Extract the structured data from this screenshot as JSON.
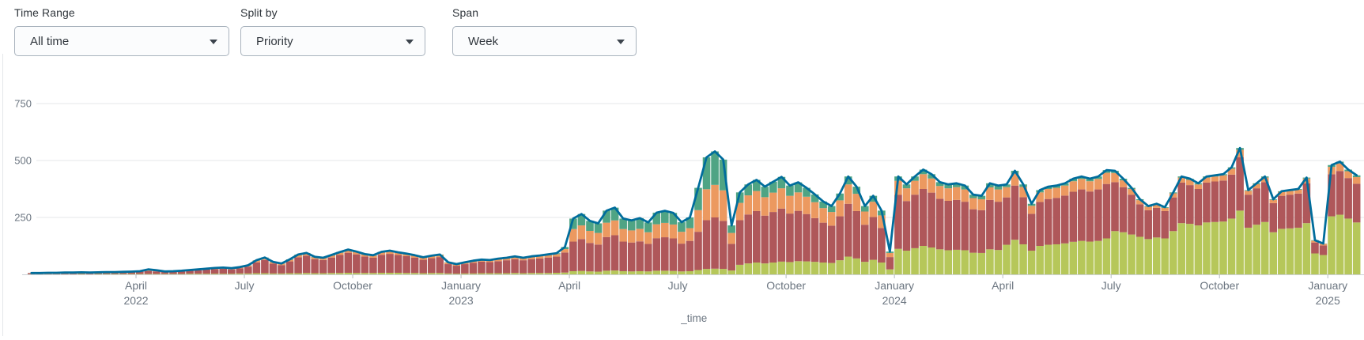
{
  "filters": [
    {
      "label": "Time Range",
      "value": "All time"
    },
    {
      "label": "Split by",
      "value": "Priority"
    },
    {
      "label": "Span",
      "value": "Week"
    }
  ],
  "chart_data": {
    "type": "bar",
    "subtype": "stacked-weekly-columns-with-total-line",
    "title": "",
    "xlabel": "_time",
    "ylabel": "",
    "ylim": [
      0,
      830
    ],
    "yticks": [
      250,
      500,
      750
    ],
    "grid": "horizontal",
    "legend_position": "none",
    "span": "week",
    "colors": {
      "lime": "#b6c75a",
      "red": "#af575a",
      "orange": "#ec9960",
      "teal": "#4fa484",
      "line": "#006d9c",
      "axis_text": "#6b7580",
      "gridline": "#e4e7ea",
      "baseline": "#ccd1d6",
      "tickmark": "#b6bcc2"
    },
    "stack_order_bottom_to_top": [
      "lime",
      "red",
      "orange",
      "teal"
    ],
    "line_series": "total-of-stack",
    "x_ticks": [
      {
        "week": 13,
        "lines": [
          "April",
          "2022"
        ]
      },
      {
        "week": 26,
        "lines": [
          "July"
        ]
      },
      {
        "week": 39,
        "lines": [
          "October"
        ]
      },
      {
        "week": 52,
        "lines": [
          "January",
          "2023"
        ]
      },
      {
        "week": 65,
        "lines": [
          "April"
        ]
      },
      {
        "week": 78,
        "lines": [
          "July"
        ]
      },
      {
        "week": 91,
        "lines": [
          "October"
        ]
      },
      {
        "week": 104,
        "lines": [
          "January",
          "2024"
        ]
      },
      {
        "week": 117,
        "lines": [
          "April"
        ]
      },
      {
        "week": 130,
        "lines": [
          "July"
        ]
      },
      {
        "week": 143,
        "lines": [
          "October"
        ]
      },
      {
        "week": 156,
        "lines": [
          "January",
          "2025"
        ]
      }
    ],
    "weeks_start": "2022-01",
    "weeks": [
      [
        1,
        5,
        0,
        0
      ],
      [
        1,
        5,
        0,
        0
      ],
      [
        1,
        5,
        1,
        0
      ],
      [
        1,
        6,
        0,
        0
      ],
      [
        1,
        6,
        1,
        0
      ],
      [
        1,
        6,
        1,
        0
      ],
      [
        2,
        6,
        1,
        0
      ],
      [
        1,
        6,
        1,
        0
      ],
      [
        2,
        6,
        1,
        0
      ],
      [
        2,
        7,
        1,
        0
      ],
      [
        2,
        7,
        1,
        0
      ],
      [
        2,
        8,
        1,
        0
      ],
      [
        2,
        9,
        1,
        0
      ],
      [
        2,
        10,
        2,
        0
      ],
      [
        2,
        12,
        8,
        0
      ],
      [
        2,
        11,
        5,
        0
      ],
      [
        2,
        9,
        2,
        0
      ],
      [
        2,
        10,
        2,
        0
      ],
      [
        2,
        11,
        3,
        0
      ],
      [
        3,
        13,
        3,
        0
      ],
      [
        3,
        15,
        4,
        0
      ],
      [
        3,
        18,
        4,
        0
      ],
      [
        3,
        20,
        4,
        1
      ],
      [
        3,
        22,
        4,
        1
      ],
      [
        3,
        19,
        4,
        1
      ],
      [
        4,
        23,
        4,
        1
      ],
      [
        4,
        30,
        5,
        1
      ],
      [
        5,
        48,
        8,
        1
      ],
      [
        5,
        58,
        9,
        2
      ],
      [
        4,
        43,
        7,
        1
      ],
      [
        4,
        37,
        6,
        1
      ],
      [
        5,
        52,
        7,
        2
      ],
      [
        5,
        70,
        10,
        2
      ],
      [
        6,
        76,
        10,
        2
      ],
      [
        5,
        62,
        8,
        2
      ],
      [
        5,
        58,
        8,
        2
      ],
      [
        6,
        68,
        9,
        2
      ],
      [
        6,
        79,
        10,
        3
      ],
      [
        7,
        88,
        11,
        3
      ],
      [
        6,
        82,
        10,
        2
      ],
      [
        6,
        72,
        9,
        2
      ],
      [
        6,
        67,
        9,
        2
      ],
      [
        7,
        79,
        10,
        3
      ],
      [
        7,
        83,
        11,
        3
      ],
      [
        7,
        78,
        10,
        2
      ],
      [
        6,
        74,
        9,
        2
      ],
      [
        6,
        67,
        9,
        2
      ],
      [
        5,
        59,
        9,
        2
      ],
      [
        6,
        65,
        9,
        2
      ],
      [
        6,
        70,
        9,
        2
      ],
      [
        4,
        41,
        7,
        1
      ],
      [
        3,
        35,
        6,
        1
      ],
      [
        4,
        41,
        7,
        1
      ],
      [
        4,
        47,
        8,
        1
      ],
      [
        5,
        51,
        8,
        1
      ],
      [
        5,
        49,
        8,
        1
      ],
      [
        5,
        53,
        9,
        2
      ],
      [
        5,
        57,
        9,
        2
      ],
      [
        6,
        61,
        10,
        2
      ],
      [
        5,
        57,
        9,
        2
      ],
      [
        6,
        61,
        10,
        2
      ],
      [
        6,
        64,
        10,
        3
      ],
      [
        6,
        68,
        11,
        3
      ],
      [
        7,
        71,
        11,
        4
      ],
      [
        8,
        88,
        15,
        9
      ],
      [
        14,
        130,
        55,
        46
      ],
      [
        15,
        140,
        60,
        50
      ],
      [
        13,
        125,
        53,
        44
      ],
      [
        12,
        119,
        51,
        42
      ],
      [
        16,
        148,
        63,
        53
      ],
      [
        17,
        155,
        65,
        56
      ],
      [
        14,
        130,
        55,
        46
      ],
      [
        13,
        127,
        53,
        44
      ],
      [
        14,
        131,
        55,
        47
      ],
      [
        13,
        121,
        51,
        43
      ],
      [
        16,
        143,
        61,
        51
      ],
      [
        16,
        147,
        63,
        53
      ],
      [
        15,
        143,
        61,
        51
      ],
      [
        13,
        122,
        52,
        42
      ],
      [
        14,
        133,
        56,
        47
      ],
      [
        19,
        168,
        95,
        98
      ],
      [
        24,
        214,
        136,
        140
      ],
      [
        25,
        225,
        143,
        147
      ],
      [
        24,
        211,
        134,
        135
      ],
      [
        17,
        117,
        48,
        33
      ],
      [
        42,
        196,
        76,
        46
      ],
      [
        48,
        215,
        84,
        48
      ],
      [
        52,
        226,
        88,
        49
      ],
      [
        48,
        210,
        81,
        46
      ],
      [
        52,
        222,
        85,
        48
      ],
      [
        56,
        233,
        89,
        50
      ],
      [
        54,
        213,
        78,
        45
      ],
      [
        58,
        221,
        81,
        44
      ],
      [
        57,
        208,
        76,
        39
      ],
      [
        55,
        192,
        70,
        34
      ],
      [
        52,
        175,
        64,
        29
      ],
      [
        50,
        164,
        60,
        26
      ],
      [
        62,
        193,
        70,
        30
      ],
      [
        78,
        232,
        85,
        35
      ],
      [
        70,
        208,
        76,
        31
      ],
      [
        55,
        163,
        58,
        24
      ],
      [
        64,
        188,
        67,
        26
      ],
      [
        52,
        152,
        55,
        21
      ],
      [
        22,
        54,
        18,
        6
      ],
      [
        112,
        237,
        62,
        19
      ],
      [
        104,
        218,
        56,
        17
      ],
      [
        115,
        235,
        61,
        19
      ],
      [
        125,
        250,
        65,
        20
      ],
      [
        118,
        241,
        62,
        19
      ],
      [
        110,
        222,
        56,
        17
      ],
      [
        106,
        217,
        55,
        17
      ],
      [
        108,
        219,
        56,
        17
      ],
      [
        106,
        213,
        54,
        17
      ],
      [
        95,
        191,
        49,
        15
      ],
      [
        94,
        188,
        48,
        15
      ],
      [
        110,
        217,
        55,
        18
      ],
      [
        107,
        212,
        54,
        17
      ],
      [
        130,
        208,
        45,
        12
      ],
      [
        152,
        238,
        52,
        13
      ],
      [
        132,
        207,
        45,
        11
      ],
      [
        104,
        162,
        35,
        9
      ],
      [
        125,
        193,
        42,
        10
      ],
      [
        130,
        201,
        44,
        10
      ],
      [
        132,
        204,
        44,
        10
      ],
      [
        136,
        210,
        44,
        10
      ],
      [
        143,
        220,
        46,
        11
      ],
      [
        147,
        226,
        46,
        11
      ],
      [
        144,
        220,
        45,
        11
      ],
      [
        147,
        226,
        46,
        11
      ],
      [
        158,
        239,
        49,
        12
      ],
      [
        190,
        215,
        40,
        10
      ],
      [
        185,
        198,
        30,
        7
      ],
      [
        175,
        175,
        25,
        5
      ],
      [
        165,
        143,
        18,
        4
      ],
      [
        155,
        127,
        15,
        3
      ],
      [
        162,
        130,
        15,
        3
      ],
      [
        158,
        120,
        14,
        3
      ],
      [
        190,
        148,
        18,
        4
      ],
      [
        225,
        178,
        22,
        5
      ],
      [
        222,
        170,
        23,
        5
      ],
      [
        215,
        160,
        20,
        5
      ],
      [
        228,
        175,
        22,
        5
      ],
      [
        230,
        178,
        22,
        5
      ],
      [
        232,
        180,
        23,
        5
      ],
      [
        245,
        193,
        26,
        6
      ],
      [
        280,
        235,
        32,
        8
      ],
      [
        205,
        145,
        17,
        3
      ],
      [
        218,
        160,
        18,
        4
      ],
      [
        230,
        175,
        20,
        5
      ],
      [
        185,
        128,
        14,
        3
      ],
      [
        200,
        145,
        17,
        3
      ],
      [
        202,
        148,
        17,
        3
      ],
      [
        205,
        150,
        17,
        3
      ],
      [
        225,
        175,
        21,
        4
      ],
      [
        92,
        48,
        8,
        2
      ],
      [
        85,
        42,
        7,
        1
      ],
      [
        255,
        185,
        32,
        8
      ],
      [
        262,
        192,
        33,
        8
      ],
      [
        245,
        178,
        30,
        7
      ],
      [
        228,
        170,
        29,
        8
      ]
    ]
  }
}
